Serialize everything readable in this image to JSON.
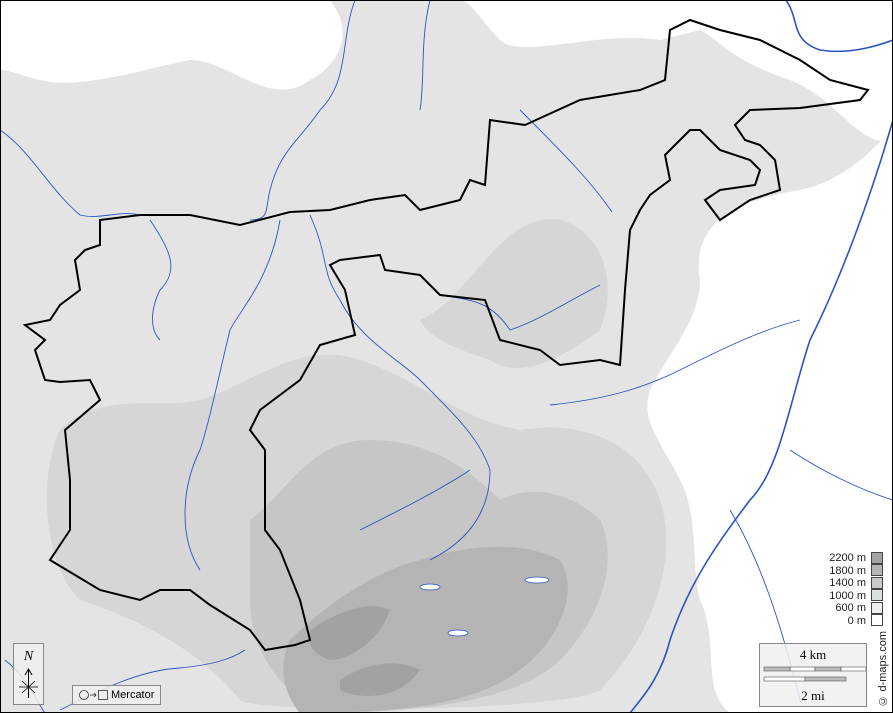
{
  "map": {
    "legend": {
      "items": [
        {
          "label": "2200 m",
          "color": "#a4a4a4"
        },
        {
          "label": "1800 m",
          "color": "#b6b6b6"
        },
        {
          "label": "1400 m",
          "color": "#c9c9c9"
        },
        {
          "label": "1000 m",
          "color": "#dadfdf"
        },
        {
          "label": "600 m",
          "color": "#eeeeee"
        },
        {
          "label": "0 m",
          "color": "#ffffff"
        }
      ]
    },
    "scale": {
      "km_label": "4 km",
      "mi_label": "2 mi"
    },
    "compass": {
      "north_label": "N",
      "icon": "north-arrow-icon"
    },
    "projection": {
      "label": "Mercator",
      "icon": "circle-to-square-icon"
    },
    "copyright": "© d-maps.com",
    "colors": {
      "river": "#2a55c0",
      "border": "#000000",
      "lowland": "#ffffff",
      "terrain": "#e4e4e4"
    }
  }
}
